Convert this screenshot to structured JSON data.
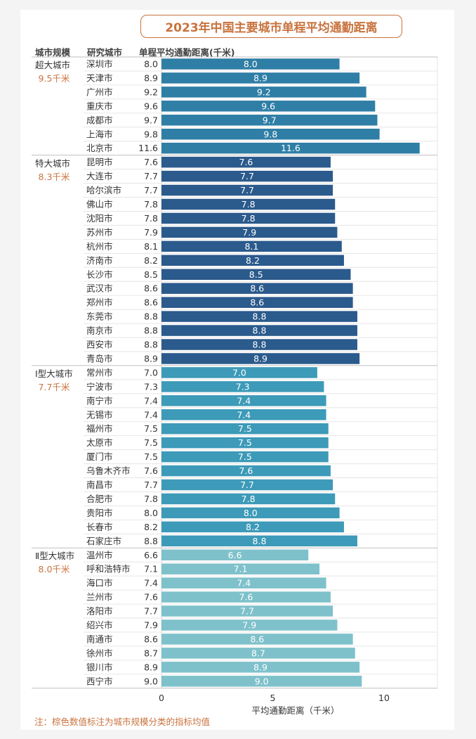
{
  "title": "2023年中国主要城市单程平均通勤距离",
  "headers": {
    "scale": "城市规模",
    "city": "研究城市",
    "distance": "单程平均通勤距离(千米)"
  },
  "footnote": "注：棕色数值标注为城市规模分类的指标均值",
  "colors": {
    "accent": "#c8733e",
    "super": "#2f7ea6",
    "mega": "#2b5a8c",
    "type1": "#3d9ab8",
    "type2": "#7ec1cb"
  },
  "chart_data": {
    "type": "bar",
    "orientation": "horizontal",
    "xlabel": "平均通勤距离（千米）",
    "xlim": [
      0,
      12
    ],
    "xticks": [
      0,
      5,
      10
    ],
    "groups": [
      {
        "name": "超大城市",
        "mean": "9.5千米",
        "color": "#2f7ea6",
        "cities": [
          {
            "city": "深圳市",
            "value": 8.0
          },
          {
            "city": "天津市",
            "value": 8.9
          },
          {
            "city": "广州市",
            "value": 9.2
          },
          {
            "city": "重庆市",
            "value": 9.6
          },
          {
            "city": "成都市",
            "value": 9.7
          },
          {
            "city": "上海市",
            "value": 9.8
          },
          {
            "city": "北京市",
            "value": 11.6
          }
        ]
      },
      {
        "name": "特大城市",
        "mean": "8.3千米",
        "color": "#2b5a8c",
        "cities": [
          {
            "city": "昆明市",
            "value": 7.6
          },
          {
            "city": "大连市",
            "value": 7.7
          },
          {
            "city": "哈尔滨市",
            "value": 7.7
          },
          {
            "city": "佛山市",
            "value": 7.8
          },
          {
            "city": "沈阳市",
            "value": 7.8
          },
          {
            "city": "苏州市",
            "value": 7.9
          },
          {
            "city": "杭州市",
            "value": 8.1
          },
          {
            "city": "济南市",
            "value": 8.2
          },
          {
            "city": "长沙市",
            "value": 8.5
          },
          {
            "city": "武汉市",
            "value": 8.6
          },
          {
            "city": "郑州市",
            "value": 8.6
          },
          {
            "city": "东莞市",
            "value": 8.8
          },
          {
            "city": "南京市",
            "value": 8.8
          },
          {
            "city": "西安市",
            "value": 8.8
          },
          {
            "city": "青岛市",
            "value": 8.9
          }
        ]
      },
      {
        "name": "Ⅰ型大城市",
        "mean": "7.7千米",
        "color": "#3d9ab8",
        "cities": [
          {
            "city": "常州市",
            "value": 7.0
          },
          {
            "city": "宁波市",
            "value": 7.3
          },
          {
            "city": "南宁市",
            "value": 7.4
          },
          {
            "city": "无锡市",
            "value": 7.4
          },
          {
            "city": "福州市",
            "value": 7.5
          },
          {
            "city": "太原市",
            "value": 7.5
          },
          {
            "city": "厦门市",
            "value": 7.5
          },
          {
            "city": "乌鲁木齐市",
            "value": 7.6
          },
          {
            "city": "南昌市",
            "value": 7.7
          },
          {
            "city": "合肥市",
            "value": 7.8
          },
          {
            "city": "贵阳市",
            "value": 8.0
          },
          {
            "city": "长春市",
            "value": 8.2
          },
          {
            "city": "石家庄市",
            "value": 8.8
          }
        ]
      },
      {
        "name": "Ⅱ型大城市",
        "mean": "8.0千米",
        "color": "#7ec1cb",
        "cities": [
          {
            "city": "温州市",
            "value": 6.6
          },
          {
            "city": "呼和浩特市",
            "value": 7.1
          },
          {
            "city": "海口市",
            "value": 7.4
          },
          {
            "city": "兰州市",
            "value": 7.6
          },
          {
            "city": "洛阳市",
            "value": 7.7
          },
          {
            "city": "绍兴市",
            "value": 7.9
          },
          {
            "city": "南通市",
            "value": 8.6
          },
          {
            "city": "徐州市",
            "value": 8.7
          },
          {
            "city": "银川市",
            "value": 8.9
          },
          {
            "city": "西宁市",
            "value": 9.0
          }
        ]
      }
    ]
  }
}
